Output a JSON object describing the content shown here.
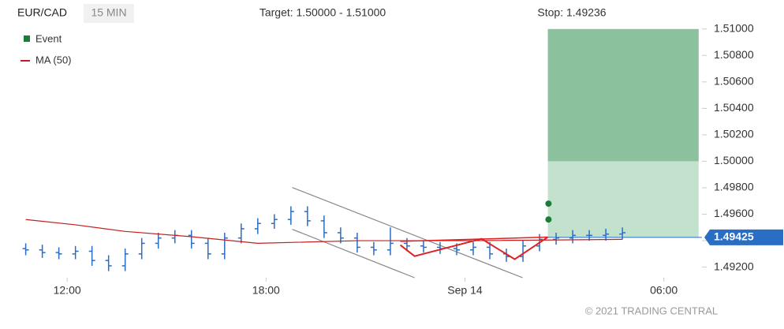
{
  "chart_data": {
    "type": "ohlc",
    "symbol": "EUR/CAD",
    "interval": "15 MIN",
    "target_text": "Target: 1.50000 - 1.51000",
    "stop_text": "Stop: 1.49236",
    "copyright": "© 2021 TRADING CENTRAL",
    "color": "#2a6dc4",
    "xlim": [
      10.45,
      31.15
    ],
    "xticks": [
      {
        "value": 12,
        "label": "12:00"
      },
      {
        "value": 18,
        "label": "18:00"
      },
      {
        "value": 24,
        "label": "Sep 14"
      },
      {
        "value": 30,
        "label": "06:00"
      }
    ],
    "ylim": [
      1.4912,
      1.511
    ],
    "yticks": [
      {
        "value": 1.492,
        "label": "1.49200"
      },
      {
        "value": 1.494,
        "label": "1.49400"
      },
      {
        "value": 1.496,
        "label": "1.49600"
      },
      {
        "value": 1.498,
        "label": "1.49800"
      },
      {
        "value": 1.5,
        "label": "1.50000"
      },
      {
        "value": 1.502,
        "label": "1.50200"
      },
      {
        "value": 1.504,
        "label": "1.50400"
      },
      {
        "value": 1.506,
        "label": "1.50600"
      },
      {
        "value": 1.508,
        "label": "1.50800"
      },
      {
        "value": 1.51,
        "label": "1.51000"
      }
    ],
    "x": [
      10.75,
      11.25,
      11.75,
      12.25,
      12.75,
      13.25,
      13.75,
      14.25,
      14.75,
      15.25,
      15.75,
      16.25,
      16.75,
      17.25,
      17.75,
      18.25,
      18.75,
      19.25,
      19.75,
      20.25,
      20.75,
      21.25,
      21.75,
      22.25,
      22.75,
      23.25,
      23.75,
      24.25,
      24.75,
      25.25,
      25.75,
      26.25,
      26.75,
      27.25,
      27.75,
      28.25,
      28.75
    ],
    "open": [
      1.4934,
      1.4933,
      1.4931,
      1.493,
      1.4932,
      1.4925,
      1.4921,
      1.493,
      1.4938,
      1.4942,
      1.4944,
      1.4938,
      1.493,
      1.4942,
      1.4949,
      1.4953,
      1.4956,
      1.4962,
      1.4955,
      1.4946,
      1.4942,
      1.4935,
      1.4933,
      1.4938,
      1.4936,
      1.4935,
      1.4934,
      1.4933,
      1.4935,
      1.493,
      1.4928,
      1.4936,
      1.4941,
      1.4942,
      1.4944,
      1.4944,
      1.4945
    ],
    "high": [
      1.4938,
      1.4937,
      1.4935,
      1.4936,
      1.4936,
      1.4929,
      1.4934,
      1.4942,
      1.4946,
      1.4948,
      1.4948,
      1.4942,
      1.4946,
      1.4953,
      1.4957,
      1.496,
      1.4966,
      1.4966,
      1.4959,
      1.495,
      1.4946,
      1.4939,
      1.495,
      1.4942,
      1.494,
      1.4939,
      1.4938,
      1.4939,
      1.4939,
      1.4934,
      1.494,
      1.4945,
      1.4946,
      1.4948,
      1.4948,
      1.4949,
      1.495
    ],
    "low": [
      1.4929,
      1.4927,
      1.4926,
      1.4926,
      1.4921,
      1.4917,
      1.4917,
      1.4926,
      1.4934,
      1.4938,
      1.4934,
      1.4926,
      1.4926,
      1.4938,
      1.4945,
      1.4949,
      1.4952,
      1.4951,
      1.4942,
      1.4938,
      1.4931,
      1.4929,
      1.4929,
      1.4932,
      1.4931,
      1.493,
      1.4929,
      1.4929,
      1.4926,
      1.4924,
      1.4924,
      1.4932,
      1.4937,
      1.4938,
      1.494,
      1.494,
      1.4941
    ],
    "close": [
      1.4933,
      1.4931,
      1.493,
      1.4932,
      1.4925,
      1.4921,
      1.493,
      1.4938,
      1.4942,
      1.4944,
      1.4938,
      1.493,
      1.4942,
      1.4949,
      1.4953,
      1.4956,
      1.4962,
      1.4955,
      1.4946,
      1.4942,
      1.4935,
      1.4933,
      1.4938,
      1.4936,
      1.4935,
      1.4934,
      1.4933,
      1.4935,
      1.493,
      1.4928,
      1.4936,
      1.4941,
      1.4942,
      1.4944,
      1.4944,
      1.4945,
      1.4946
    ],
    "ma": {
      "name": "MA (50)",
      "color": "#c0201e",
      "x": [
        10.75,
        12.25,
        13.75,
        15.75,
        17.75,
        20.75,
        24.25,
        28.75
      ],
      "values": [
        1.4956,
        1.4952,
        1.4947,
        1.4943,
        1.4938,
        1.494,
        1.494,
        1.4941
      ]
    },
    "events": {
      "name": "Event",
      "color": "#1e7b3a",
      "x": [
        26.52,
        26.52
      ],
      "values": [
        1.4968,
        1.4956
      ]
    },
    "target_zone": {
      "x": [
        26.5,
        31.05
      ],
      "low": 1.5,
      "high": 1.51,
      "color": "#8bc29d"
    },
    "entry_zone": {
      "x": [
        26.5,
        31.05
      ],
      "low": 1.49425,
      "high": 1.5,
      "color": "#c3e2cd"
    },
    "last_price": 1.49425,
    "channel": [
      {
        "x": [
          18.79,
          25.74
        ],
        "values": [
          1.49802,
          1.4912
        ]
      },
      {
        "x": [
          18.79,
          22.48
        ],
        "values": [
          1.49486,
          1.4912
        ]
      }
    ],
    "pattern": {
      "x": [
        22.05,
        22.48,
        24.5,
        25.5,
        26.5
      ],
      "values": [
        1.49367,
        1.49283,
        1.49414,
        1.4926,
        1.49427
      ]
    },
    "pattern_top": {
      "x": [
        22.05,
        26.5
      ],
      "values": [
        1.49395,
        1.49427
      ]
    }
  }
}
